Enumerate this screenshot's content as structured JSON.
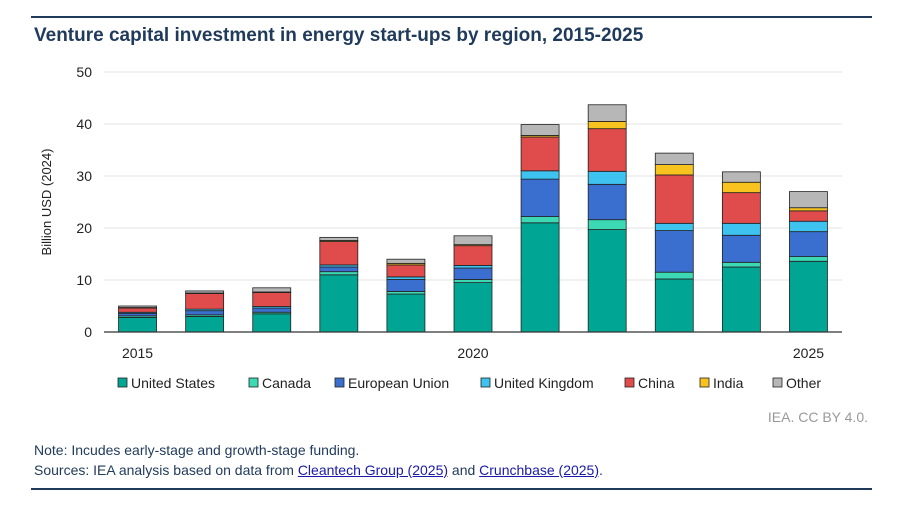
{
  "title": "Venture capital investment in energy start-ups by region, 2015-2025",
  "credit": "IEA. CC BY 4.0.",
  "note": "Note: Incudes early-stage and growth-stage funding.",
  "sources": {
    "prefix": "Sources: IEA analysis based on data from ",
    "link1": "Cleantech Group (2025)",
    "middle": " and ",
    "link2": "Crunchbase (2025)",
    "suffix": "."
  },
  "chart_data": {
    "type": "bar",
    "stacked": true,
    "title": "Venture capital investment in energy start-ups by region, 2015-2025",
    "ylabel": "Billion USD (2024)",
    "xlabel": "",
    "ylim": [
      0,
      50
    ],
    "yticks": [
      0,
      10,
      20,
      30,
      40,
      50
    ],
    "grid": true,
    "legend_position": "bottom",
    "categories": [
      "2015",
      "2016",
      "2017",
      "2018",
      "2019",
      "2020",
      "2021",
      "2022",
      "2023",
      "2024",
      "2025"
    ],
    "xtick_labels": [
      "2015",
      "",
      "",
      "",
      "",
      "2020",
      "",
      "",
      "",
      "",
      "2025"
    ],
    "series": [
      {
        "name": "United States",
        "color": "#00a693",
        "values": [
          2.8,
          3.0,
          3.5,
          11.0,
          7.3,
          9.5,
          21.0,
          19.7,
          10.2,
          12.5,
          13.6
        ]
      },
      {
        "name": "Canada",
        "color": "#3dd9b5",
        "values": [
          0.3,
          0.3,
          0.3,
          0.6,
          0.5,
          0.6,
          1.2,
          1.9,
          1.3,
          0.9,
          0.9
        ]
      },
      {
        "name": "European Union",
        "color": "#3a6fcf",
        "values": [
          0.5,
          0.8,
          0.8,
          0.9,
          2.3,
          2.2,
          7.2,
          6.8,
          8.0,
          5.2,
          4.8
        ]
      },
      {
        "name": "United Kingdom",
        "color": "#3ec3f0",
        "values": [
          0.2,
          0.3,
          0.3,
          0.4,
          0.5,
          0.5,
          1.6,
          2.5,
          1.4,
          2.3,
          2.0
        ]
      },
      {
        "name": "China",
        "color": "#e04b4b",
        "values": [
          0.8,
          3.0,
          2.7,
          4.5,
          2.3,
          3.8,
          6.5,
          8.2,
          9.3,
          5.9,
          2.0
        ]
      },
      {
        "name": "India",
        "color": "#f9c31f",
        "values": [
          0.1,
          0.1,
          0.1,
          0.2,
          0.3,
          0.2,
          0.3,
          1.4,
          2.0,
          2.0,
          0.6
        ]
      },
      {
        "name": "Other",
        "color": "#b7b7b7",
        "values": [
          0.3,
          0.4,
          0.8,
          0.6,
          0.8,
          1.7,
          2.1,
          3.2,
          2.2,
          2.0,
          3.1
        ]
      }
    ]
  }
}
